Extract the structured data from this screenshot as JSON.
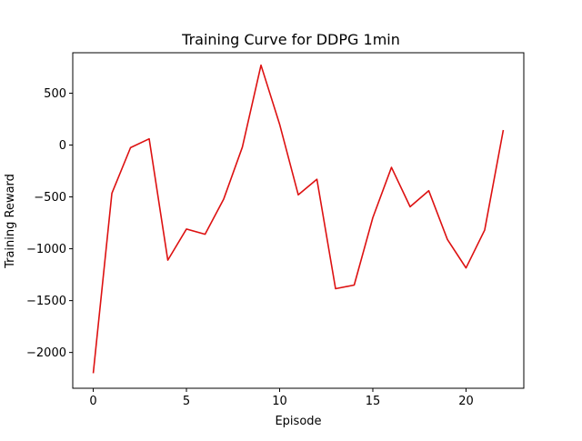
{
  "chart_data": {
    "type": "line",
    "title": "Training Curve for DDPG 1min",
    "xlabel": "Episode",
    "ylabel": "Training Reward",
    "xlim": [
      -1.1,
      23.1
    ],
    "ylim": [
      -2345,
      890
    ],
    "xticks": [
      0,
      5,
      10,
      15,
      20
    ],
    "yticks": [
      -2000,
      -1500,
      -1000,
      -500,
      0,
      500
    ],
    "xtick_labels": [
      "0",
      "5",
      "10",
      "15",
      "20"
    ],
    "ytick_labels": [
      "−2000",
      "−1500",
      "−1000",
      "−500",
      "0",
      "500"
    ],
    "grid": false,
    "series": [
      {
        "color": "#dd1111",
        "x": [
          0,
          1,
          2,
          3,
          4,
          5,
          6,
          7,
          8,
          9,
          10,
          11,
          12,
          13,
          14,
          15,
          16,
          17,
          18,
          19,
          20,
          21,
          22
        ],
        "values": [
          -2200,
          -465,
          -25,
          60,
          -1110,
          -810,
          -860,
          -520,
          -20,
          770,
          200,
          -480,
          -330,
          -1385,
          -1350,
          -700,
          -215,
          -595,
          -440,
          -910,
          -1185,
          -820,
          145
        ]
      }
    ]
  }
}
